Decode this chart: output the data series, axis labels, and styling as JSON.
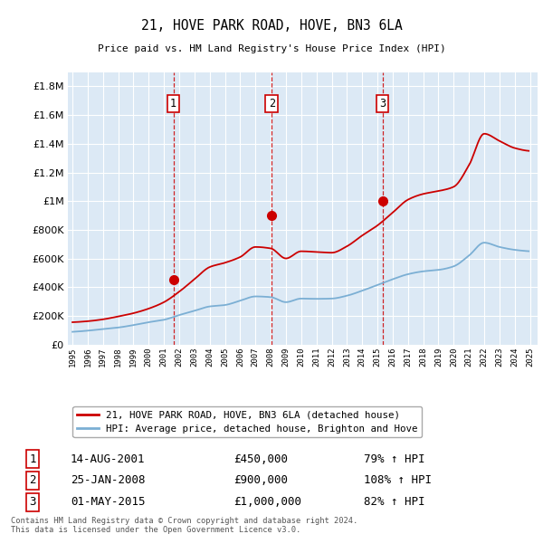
{
  "title": "21, HOVE PARK ROAD, HOVE, BN3 6LA",
  "subtitle": "Price paid vs. HM Land Registry's House Price Index (HPI)",
  "legend_line1": "21, HOVE PARK ROAD, HOVE, BN3 6LA (detached house)",
  "legend_line2": "HPI: Average price, detached house, Brighton and Hove",
  "footnote1": "Contains HM Land Registry data © Crown copyright and database right 2024.",
  "footnote2": "This data is licensed under the Open Government Licence v3.0.",
  "sales": [
    {
      "label": "1",
      "date": "14-AUG-2001",
      "price": 450000,
      "pct": "79%",
      "year": 2001.62
    },
    {
      "label": "2",
      "date": "25-JAN-2008",
      "price": 900000,
      "pct": "108%",
      "year": 2008.07
    },
    {
      "label": "3",
      "date": "01-MAY-2015",
      "price": 1000000,
      "pct": "82%",
      "year": 2015.33
    }
  ],
  "ylim": [
    0,
    1900000
  ],
  "xlim_start": 1994.7,
  "xlim_end": 2025.5,
  "bg_color": "#dce9f5",
  "red_color": "#cc0000",
  "blue_color": "#7bafd4",
  "grid_color": "#ffffff",
  "hpi_data_years": [
    1995,
    1996,
    1997,
    1998,
    1999,
    2000,
    2001,
    2002,
    2003,
    2004,
    2005,
    2006,
    2007,
    2008,
    2009,
    2010,
    2011,
    2012,
    2013,
    2014,
    2015,
    2016,
    2017,
    2018,
    2019,
    2020,
    2021,
    2022,
    2023,
    2024,
    2025
  ],
  "hpi_data_vals": [
    88000,
    96000,
    108000,
    118000,
    135000,
    155000,
    172000,
    205000,
    235000,
    265000,
    275000,
    305000,
    335000,
    330000,
    295000,
    320000,
    318000,
    320000,
    340000,
    375000,
    415000,
    455000,
    490000,
    510000,
    520000,
    545000,
    620000,
    710000,
    680000,
    660000,
    650000
  ],
  "price_data_years": [
    1995,
    1996,
    1997,
    1998,
    1999,
    2000,
    2001,
    2002,
    2003,
    2004,
    2005,
    2006,
    2007,
    2008,
    2009,
    2010,
    2011,
    2012,
    2013,
    2014,
    2015,
    2016,
    2017,
    2018,
    2019,
    2020,
    2021,
    2022,
    2023,
    2024,
    2025
  ],
  "price_data_vals": [
    155000,
    162000,
    175000,
    195000,
    218000,
    250000,
    295000,
    368000,
    455000,
    540000,
    570000,
    610000,
    680000,
    670000,
    600000,
    650000,
    645000,
    640000,
    685000,
    760000,
    830000,
    920000,
    1010000,
    1050000,
    1070000,
    1100000,
    1250000,
    1470000,
    1420000,
    1370000,
    1350000
  ]
}
